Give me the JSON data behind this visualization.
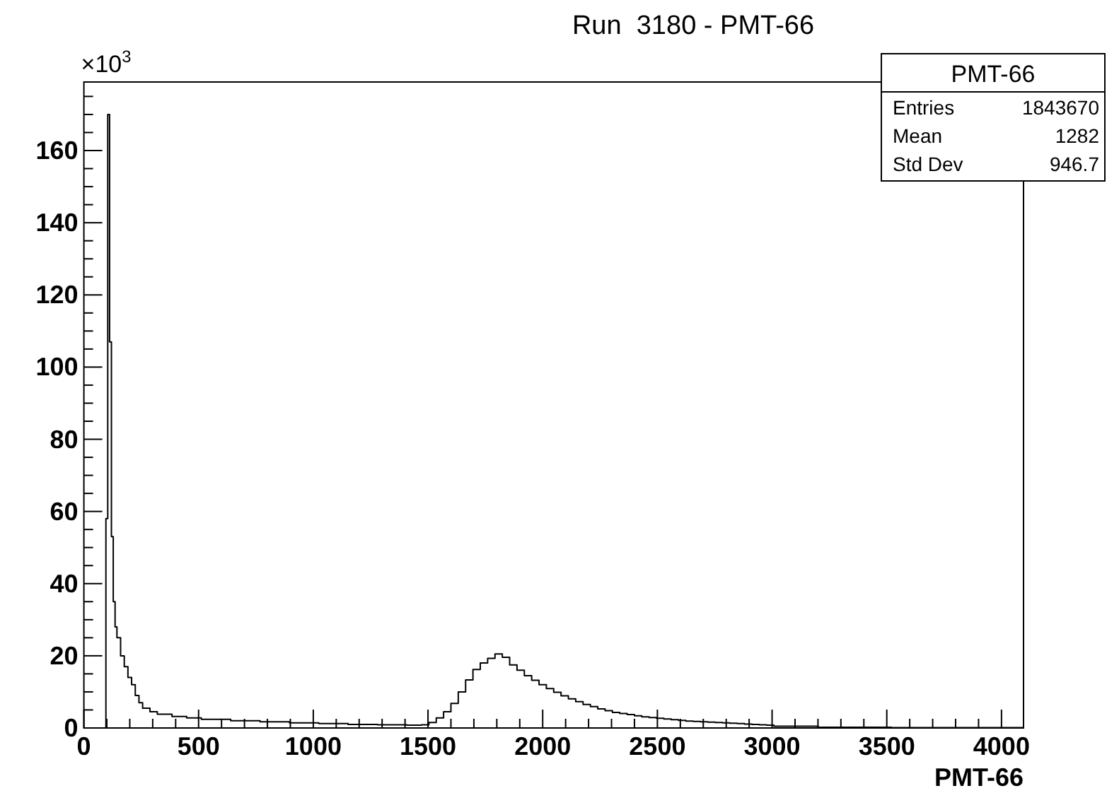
{
  "chart_data": {
    "type": "histogram",
    "title": "Run  3180 - PMT-66",
    "xlabel": "PMT-66",
    "annotations": [
      "×10$^{3}$",
      "PMT-66",
      "Entries",
      "1843670",
      "Mean",
      "1282",
      "Std Dev",
      "946.7"
    ],
    "color": "#000000",
    "bins": [
      0,
      96,
      104,
      112,
      120,
      128,
      136,
      144,
      160,
      176,
      192,
      208,
      224,
      240,
      256,
      288,
      320,
      384,
      448,
      512,
      640,
      768,
      896,
      1024,
      1152,
      1280,
      1408,
      1472,
      1504,
      1536,
      1568,
      1600,
      1632,
      1664,
      1696,
      1728,
      1760,
      1792,
      1824,
      1856,
      1888,
      1920,
      1952,
      1984,
      2016,
      2048,
      2080,
      2112,
      2144,
      2176,
      2208,
      2240,
      2272,
      2304,
      2336,
      2368,
      2400,
      2432,
      2464,
      2496,
      2528,
      2560,
      2592,
      2624,
      2656,
      2688,
      2720,
      2752,
      2784,
      2816,
      2848,
      2880,
      2912,
      2944,
      2976,
      3008,
      3200,
      3520,
      4096
    ],
    "values": [
      0,
      58,
      170,
      107,
      53,
      35,
      28,
      25,
      20,
      17,
      14,
      12,
      9,
      7,
      5.5,
      4.5,
      3.8,
      3.2,
      2.8,
      2.4,
      2.0,
      1.7,
      1.4,
      1.2,
      1.0,
      0.9,
      0.8,
      0.9,
      1.5,
      2.8,
      4.5,
      6.8,
      10,
      13.3,
      16.2,
      18,
      19.3,
      20.5,
      19.6,
      17.5,
      16,
      14.5,
      13.2,
      12,
      10.9,
      9.9,
      8.9,
      8.1,
      7.3,
      6.5,
      5.9,
      5.3,
      4.8,
      4.3,
      4.0,
      3.7,
      3.4,
      3.1,
      2.9,
      2.7,
      2.5,
      2.3,
      2.1,
      1.9,
      1.8,
      1.7,
      1.6,
      1.5,
      1.4,
      1.3,
      1.2,
      1.1,
      1.0,
      0.9,
      0.8,
      0.5,
      0.2,
      0.1
    ],
    "xlim": [
      0,
      4096
    ],
    "ylim": [
      0,
      179
    ],
    "xticks": [
      0,
      {
        "value": 100,
        "label": null
      },
      {
        "value": 200,
        "label": null
      },
      {
        "value": 300,
        "label": null
      },
      {
        "value": 400,
        "label": null
      },
      500,
      {
        "value": 600,
        "label": null
      },
      {
        "value": 700,
        "label": null
      },
      {
        "value": 800,
        "label": null
      },
      {
        "value": 900,
        "label": null
      },
      1000,
      {
        "value": 1100,
        "label": null
      },
      {
        "value": 1200,
        "label": null
      },
      {
        "value": 1300,
        "label": null
      },
      {
        "value": 1400,
        "label": null
      },
      1500,
      {
        "value": 1600,
        "label": null
      },
      {
        "value": 1700,
        "label": null
      },
      {
        "value": 1800,
        "label": null
      },
      {
        "value": 1900,
        "label": null
      },
      2000,
      {
        "value": 2100,
        "label": null
      },
      {
        "value": 2200,
        "label": null
      },
      {
        "value": 2300,
        "label": null
      },
      {
        "value": 2400,
        "label": null
      },
      2500,
      {
        "value": 2600,
        "label": null
      },
      {
        "value": 2700,
        "label": null
      },
      {
        "value": 2800,
        "label": null
      },
      {
        "value": 2900,
        "label": null
      },
      3000,
      {
        "value": 3100,
        "label": null
      },
      {
        "value": 3200,
        "label": null
      },
      {
        "value": 3300,
        "label": null
      },
      {
        "value": 3400,
        "label": null
      },
      3500,
      {
        "value": 3600,
        "label": null
      },
      {
        "value": 3700,
        "label": null
      },
      {
        "value": 3800,
        "label": null
      },
      {
        "value": 3900,
        "label": null
      },
      4000
    ],
    "yticks": [
      0,
      {
        "value": 5,
        "label": null
      },
      {
        "value": 10,
        "label": null
      },
      {
        "value": 15,
        "label": null
      },
      20,
      {
        "value": 25,
        "label": null
      },
      {
        "value": 30,
        "label": null
      },
      {
        "value": 35,
        "label": null
      },
      40,
      {
        "value": 45,
        "label": null
      },
      {
        "value": 50,
        "label": null
      },
      {
        "value": 55,
        "label": null
      },
      60,
      {
        "value": 65,
        "label": null
      },
      {
        "value": 70,
        "label": null
      },
      {
        "value": 75,
        "label": null
      },
      80,
      {
        "value": 85,
        "label": null
      },
      {
        "value": 90,
        "label": null
      },
      {
        "value": 95,
        "label": null
      },
      100,
      {
        "value": 105,
        "label": null
      },
      {
        "value": 110,
        "label": null
      },
      {
        "value": 115,
        "label": null
      },
      120,
      {
        "value": 125,
        "label": null
      },
      {
        "value": 130,
        "label": null
      },
      {
        "value": 135,
        "label": null
      },
      140,
      {
        "value": 145,
        "label": null
      },
      {
        "value": 150,
        "label": null
      },
      {
        "value": 155,
        "label": null
      },
      160,
      {
        "value": 165,
        "label": null
      },
      {
        "value": 170,
        "label": null
      },
      {
        "value": 175,
        "label": null
      }
    ],
    "grid": false
  }
}
